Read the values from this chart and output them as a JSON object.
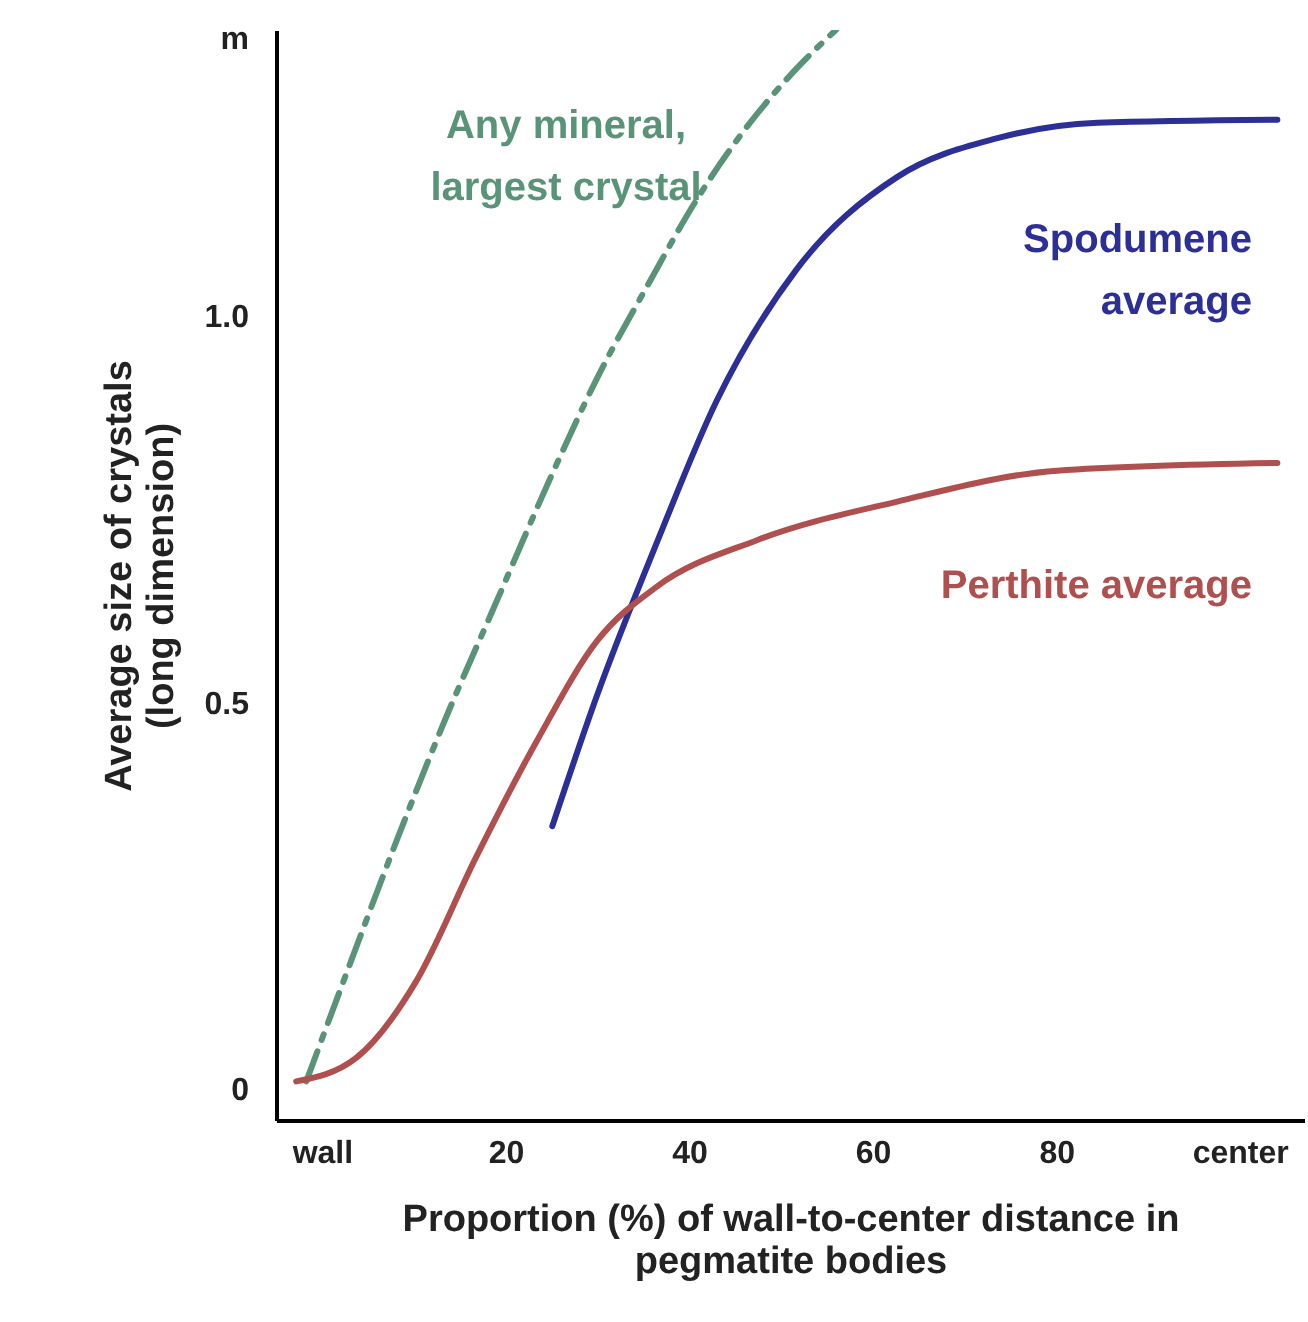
{
  "chart_data": {
    "type": "line",
    "xlabel": "Proportion (%) of wall-to-center distance in pegmatite bodies",
    "ylabel": "Average size of crystals (long dimension)",
    "xlim": [
      -5,
      107
    ],
    "ylim": [
      -0.04,
      1.37
    ],
    "xticks": [
      {
        "value": 0,
        "label": "wall"
      },
      20,
      40,
      60,
      80,
      {
        "value": 100,
        "label": "center"
      }
    ],
    "yticks": [
      0,
      0.5,
      {
        "value": 1,
        "label": "1.0"
      },
      {
        "value": 1.36,
        "label": "m"
      }
    ],
    "grid": false,
    "series": [
      {
        "name": "Any mineral, largest crystal",
        "color": "#5a9478",
        "line_style": "dashed",
        "x": [
          -1.7,
          3,
          8.1,
          13.5,
          19,
          24.5,
          30,
          35.5,
          40.8,
          46,
          51.7,
          56
        ],
        "values": [
          0.01,
          0.16,
          0.32,
          0.48,
          0.63,
          0.78,
          0.92,
          1.04,
          1.15,
          1.24,
          1.32,
          1.37
        ]
      },
      {
        "name": "Spodumene average",
        "color": "#2b2f96",
        "x": [
          25.1,
          30,
          36.6,
          43,
          51.7,
          62.7,
          73.6,
          84.5,
          104.1
        ],
        "values": [
          0.34,
          0.51,
          0.71,
          0.89,
          1.06,
          1.18,
          1.23,
          1.25,
          1.254
        ]
      },
      {
        "name": "Perthite average",
        "color": "#b0504e",
        "x": [
          -2.8,
          3.7,
          10.3,
          16.8,
          23.4,
          30,
          36.5,
          47.4,
          62.7,
          80.1,
          104.1
        ],
        "values": [
          0.01,
          0.04,
          0.14,
          0.3,
          0.45,
          0.58,
          0.65,
          0.71,
          0.76,
          0.8,
          0.81
        ]
      }
    ]
  }
}
